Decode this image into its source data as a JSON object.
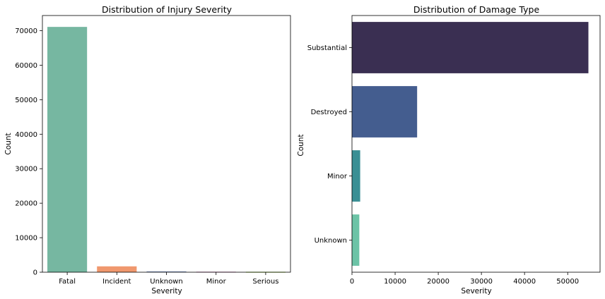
{
  "chart_data": [
    {
      "type": "bar",
      "orientation": "vertical",
      "title": "Distribution of Injury Severity",
      "xlabel": "Severity",
      "ylabel": "Count",
      "categories": [
        "Fatal",
        "Incident",
        "Unknown",
        "Minor",
        "Serious"
      ],
      "values": [
        71100,
        1700,
        250,
        150,
        120
      ],
      "colors": [
        "#76b7a1",
        "#f0986e",
        "#8b9dc3",
        "#d996c3",
        "#a6d854"
      ],
      "ylim": [
        0,
        74400
      ],
      "yticks": [
        0,
        10000,
        20000,
        30000,
        40000,
        50000,
        60000,
        70000
      ],
      "ytick_labels": [
        "0",
        "10000",
        "20000",
        "30000",
        "40000",
        "50000",
        "60000",
        "70000"
      ],
      "grid": false,
      "legend": "none"
    },
    {
      "type": "bar",
      "orientation": "horizontal",
      "title": "Distribution of Damage Type",
      "xlabel": "Severity",
      "ylabel": "Count",
      "categories": [
        "Substantial",
        "Destroyed",
        "Minor",
        "Unknown"
      ],
      "values": [
        54800,
        15100,
        1900,
        1700
      ],
      "colors": [
        "#3a2f52",
        "#445d8f",
        "#3a8f94",
        "#6cc3a6"
      ],
      "xlim": [
        0,
        57500
      ],
      "xticks": [
        0,
        10000,
        20000,
        30000,
        40000,
        50000
      ],
      "xtick_labels": [
        "0",
        "10000",
        "20000",
        "30000",
        "40000",
        "50000"
      ],
      "grid": false,
      "legend": "none"
    }
  ]
}
